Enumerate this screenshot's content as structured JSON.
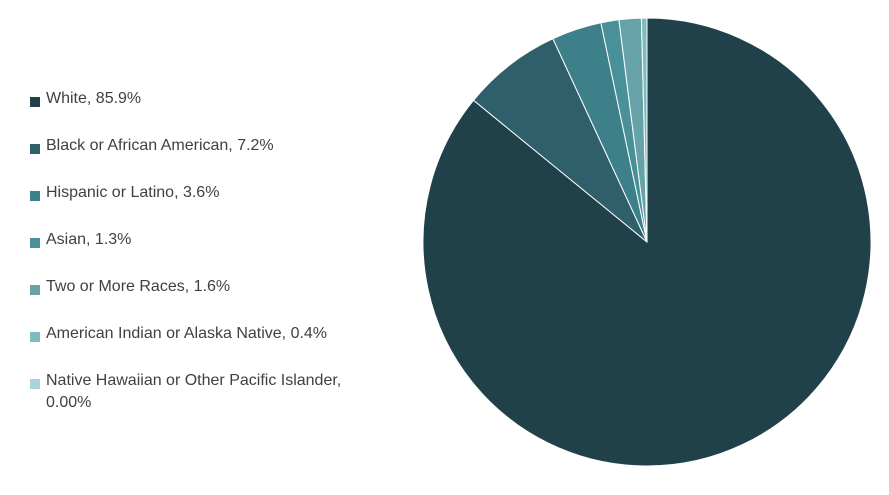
{
  "chart_data": {
    "type": "pie",
    "title": "",
    "legend_position": "left",
    "slices": [
      {
        "label": "White, 85.9%",
        "value": 85.9,
        "color": "#21414A"
      },
      {
        "label": "Black or African American, 7.2%",
        "value": 7.2,
        "color": "#2E5F6A"
      },
      {
        "label": "Hispanic or Latino, 3.6%",
        "value": 3.6,
        "color": "#3D808A"
      },
      {
        "label": "Asian, 1.3%",
        "value": 1.3,
        "color": "#4A9098"
      },
      {
        "label": "Two or More Races, 1.6%",
        "value": 1.6,
        "color": "#67A2A8"
      },
      {
        "label": "American Indian or Alaska Native, 0.4%",
        "value": 0.4,
        "color": "#7FBCC2"
      },
      {
        "label": "Native Hawaiian or Other Pacific Islander, 0.00%",
        "value": 0.0,
        "color": "#A9D3D8"
      }
    ]
  }
}
